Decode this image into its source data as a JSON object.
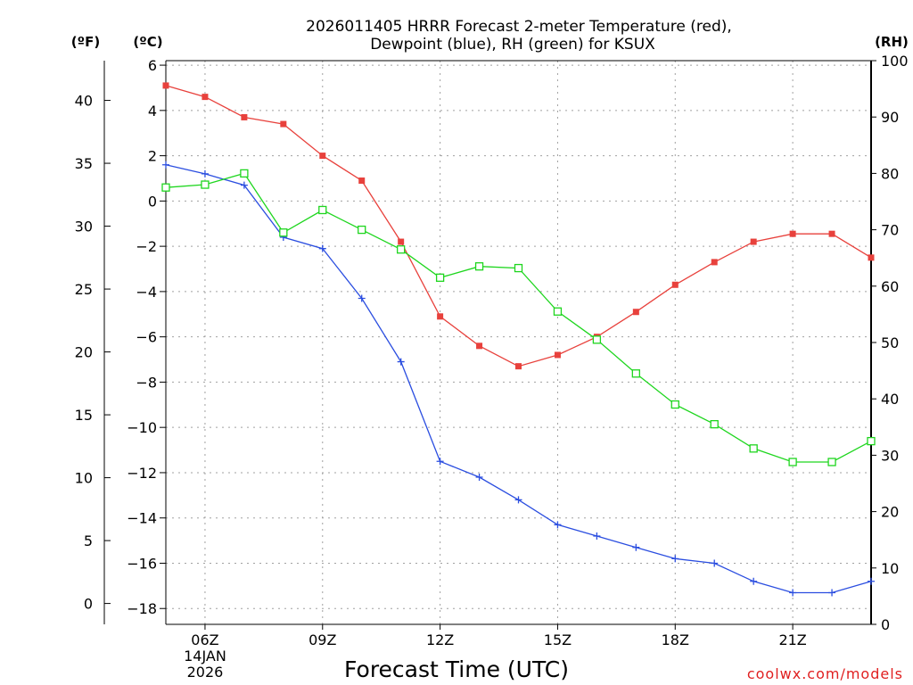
{
  "chart_data": {
    "type": "line",
    "title_line1": "2026011405 HRRR Forecast 2-meter Temperature (red),",
    "title_line2": "Dewpoint (blue), RH (green) for KSUX",
    "xlabel": "Forecast Time (UTC)",
    "left_unit_f": "(ºF)",
    "left_unit_c": "(ºC)",
    "right_unit": "(RH)",
    "credit": "coolwx.com/models",
    "x_hours": [
      5,
      6,
      7,
      8,
      9,
      10,
      11,
      12,
      13,
      14,
      15,
      16,
      17,
      18,
      19,
      20,
      21,
      22,
      23
    ],
    "x_ticks": [
      {
        "hour": 6,
        "label": "06Z",
        "sub1": "14JAN",
        "sub2": "2026"
      },
      {
        "hour": 9,
        "label": "09Z"
      },
      {
        "hour": 12,
        "label": "12Z"
      },
      {
        "hour": 15,
        "label": "15Z"
      },
      {
        "hour": 18,
        "label": "18Z"
      },
      {
        "hour": 21,
        "label": "21Z"
      }
    ],
    "xlim": [
      5,
      23
    ],
    "c_axis": {
      "ylim": [
        -18.7,
        6.2
      ],
      "ticks": [
        6,
        4,
        2,
        0,
        -2,
        -4,
        -6,
        -8,
        -10,
        -12,
        -14,
        -16,
        -18
      ]
    },
    "f_axis": {
      "ticks": [
        40,
        35,
        30,
        25,
        20,
        15,
        10,
        5,
        0
      ]
    },
    "rh_axis": {
      "ylim": [
        0,
        100
      ],
      "ticks": [
        100,
        90,
        80,
        70,
        60,
        50,
        40,
        30,
        20,
        10,
        0
      ]
    },
    "series": [
      {
        "name": "Temperature",
        "axis": "c",
        "color": "#e8413c",
        "marker": "filled-square",
        "values": [
          5.1,
          4.6,
          3.7,
          3.4,
          2.0,
          0.9,
          -1.8,
          -5.1,
          -6.4,
          -7.3,
          -6.8,
          -6.0,
          -4.9,
          -3.7,
          -2.7,
          -1.8,
          -1.45,
          -1.45,
          -2.5
        ]
      },
      {
        "name": "Dewpoint",
        "axis": "c",
        "color": "#2b4ee0",
        "marker": "plus",
        "values": [
          1.6,
          1.2,
          0.7,
          -1.6,
          -2.1,
          -4.3,
          -7.1,
          -11.5,
          -12.2,
          -13.2,
          -14.3,
          -14.8,
          -15.3,
          -15.8,
          -16.0,
          -16.8,
          -17.3,
          -17.3,
          -16.8
        ]
      },
      {
        "name": "RH",
        "axis": "rh",
        "color": "#1ed61e",
        "marker": "open-square",
        "values": [
          77.5,
          78,
          80,
          69.5,
          73.5,
          70,
          66.5,
          61.5,
          63.5,
          63.2,
          55.5,
          50.5,
          44.5,
          39,
          35.5,
          31.2,
          28.8,
          28.8,
          32.5
        ]
      }
    ]
  }
}
